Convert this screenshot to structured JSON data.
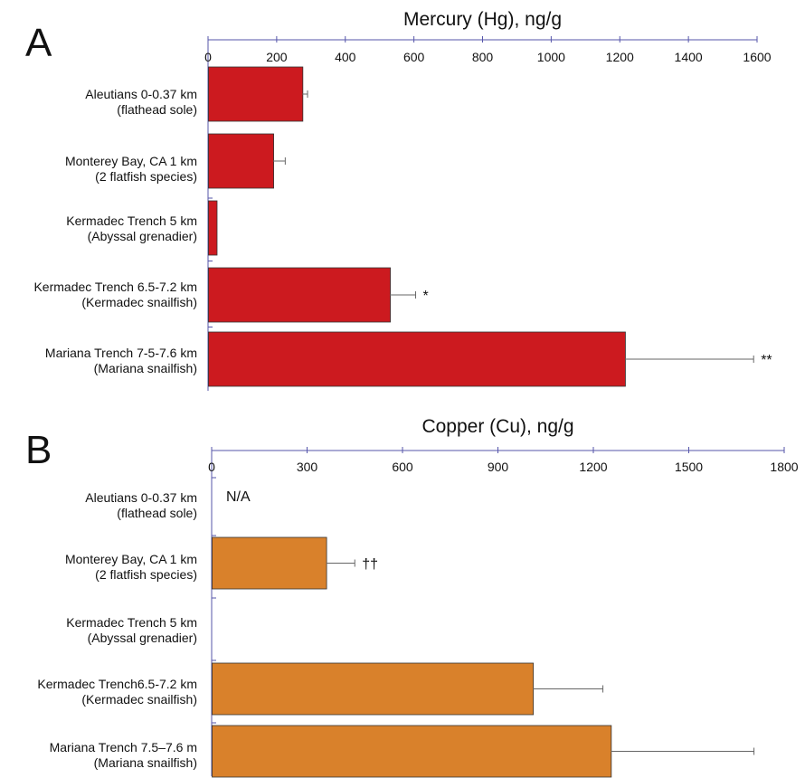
{
  "chart_data": [
    {
      "type": "bar",
      "orientation": "horizontal",
      "panel_letter": "A",
      "title": "Mercury (Hg), ng/g",
      "xlim": [
        0,
        1600
      ],
      "ticks": [
        0,
        200,
        400,
        600,
        800,
        1000,
        1200,
        1400,
        1600
      ],
      "bar_color": "#cc1a1f",
      "categories": [
        [
          "Aleutians 0-0.37 km",
          "(flathead sole)"
        ],
        [
          "Monterey Bay, CA 1 km",
          "(2 flatfish species)"
        ],
        [
          "Kermadec Trench 5 km",
          "(Abyssal grenadier)"
        ],
        [
          "Kermadec Trench 6.5-7.2 km",
          "(Kermadec snailfish)"
        ],
        [
          "Mariana Trench 7-5-7.6 km",
          "(Mariana snailfish)"
        ]
      ],
      "values": [
        275,
        190,
        25,
        530,
        1215
      ],
      "errors": [
        15,
        35,
        null,
        75,
        375
      ],
      "annotations": [
        "",
        "",
        "",
        "*",
        "**"
      ]
    },
    {
      "type": "bar",
      "orientation": "horizontal",
      "panel_letter": "B",
      "title": "Copper (Cu), ng/g",
      "xlim": [
        0,
        1800
      ],
      "ticks": [
        0,
        300,
        600,
        900,
        1200,
        1500,
        1800
      ],
      "bar_color": "#d9812b",
      "categories": [
        [
          "Aleutians 0-0.37 km",
          "(flathead sole)"
        ],
        [
          "Monterey Bay, CA  1 km",
          "(2 flatfish species)"
        ],
        [
          "Kermadec Trench 5 km",
          "(Abyssal grenadier)"
        ],
        [
          "Kermadec Trench6.5-7.2 km",
          "(Kermadec snailfish)"
        ],
        [
          "Mariana Trench 7.5–7.6 m",
          "(Mariana snailfish)"
        ]
      ],
      "values": [
        null,
        360,
        null,
        1010,
        1255
      ],
      "errors": [
        null,
        90,
        null,
        220,
        450
      ],
      "annotations": [
        "N/A",
        "††",
        "",
        "",
        ""
      ]
    }
  ]
}
